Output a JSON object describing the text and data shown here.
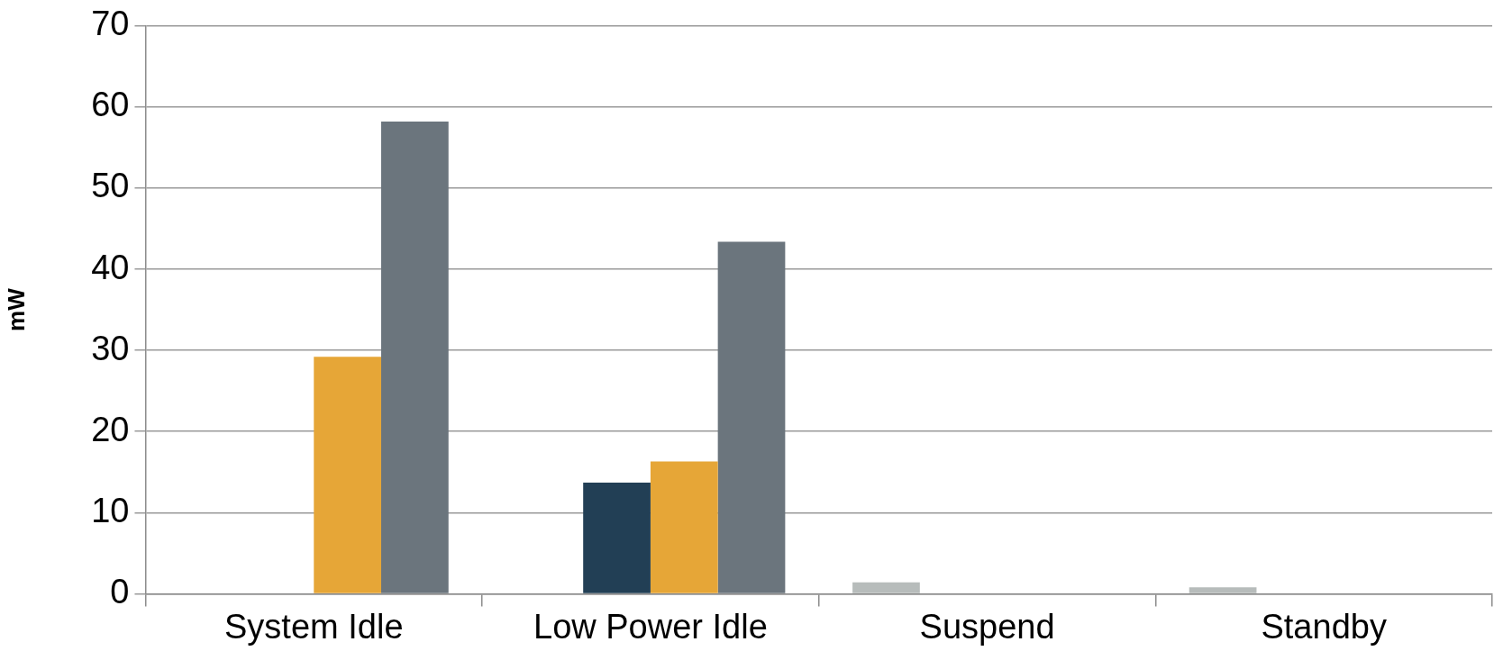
{
  "chart_data": {
    "type": "bar",
    "ylabel": "mW",
    "categories": [
      "System Idle",
      "Low Power Idle",
      "Suspend",
      "Standby"
    ],
    "series": [
      {
        "color": "#b7bcbb",
        "values": [
          0,
          0,
          1.4,
          0.8
        ]
      },
      {
        "color": "#223f55",
        "values": [
          0,
          13.7,
          0,
          0
        ]
      },
      {
        "color": "#e6a637",
        "values": [
          29.2,
          16.3,
          0,
          0
        ]
      },
      {
        "color": "#6b757d",
        "values": [
          58.2,
          43.4,
          0,
          0
        ]
      }
    ],
    "ylim": [
      0,
      70
    ],
    "yticks": [
      0,
      10,
      20,
      30,
      40,
      50,
      60,
      70
    ],
    "grid": "y",
    "legend": false
  }
}
